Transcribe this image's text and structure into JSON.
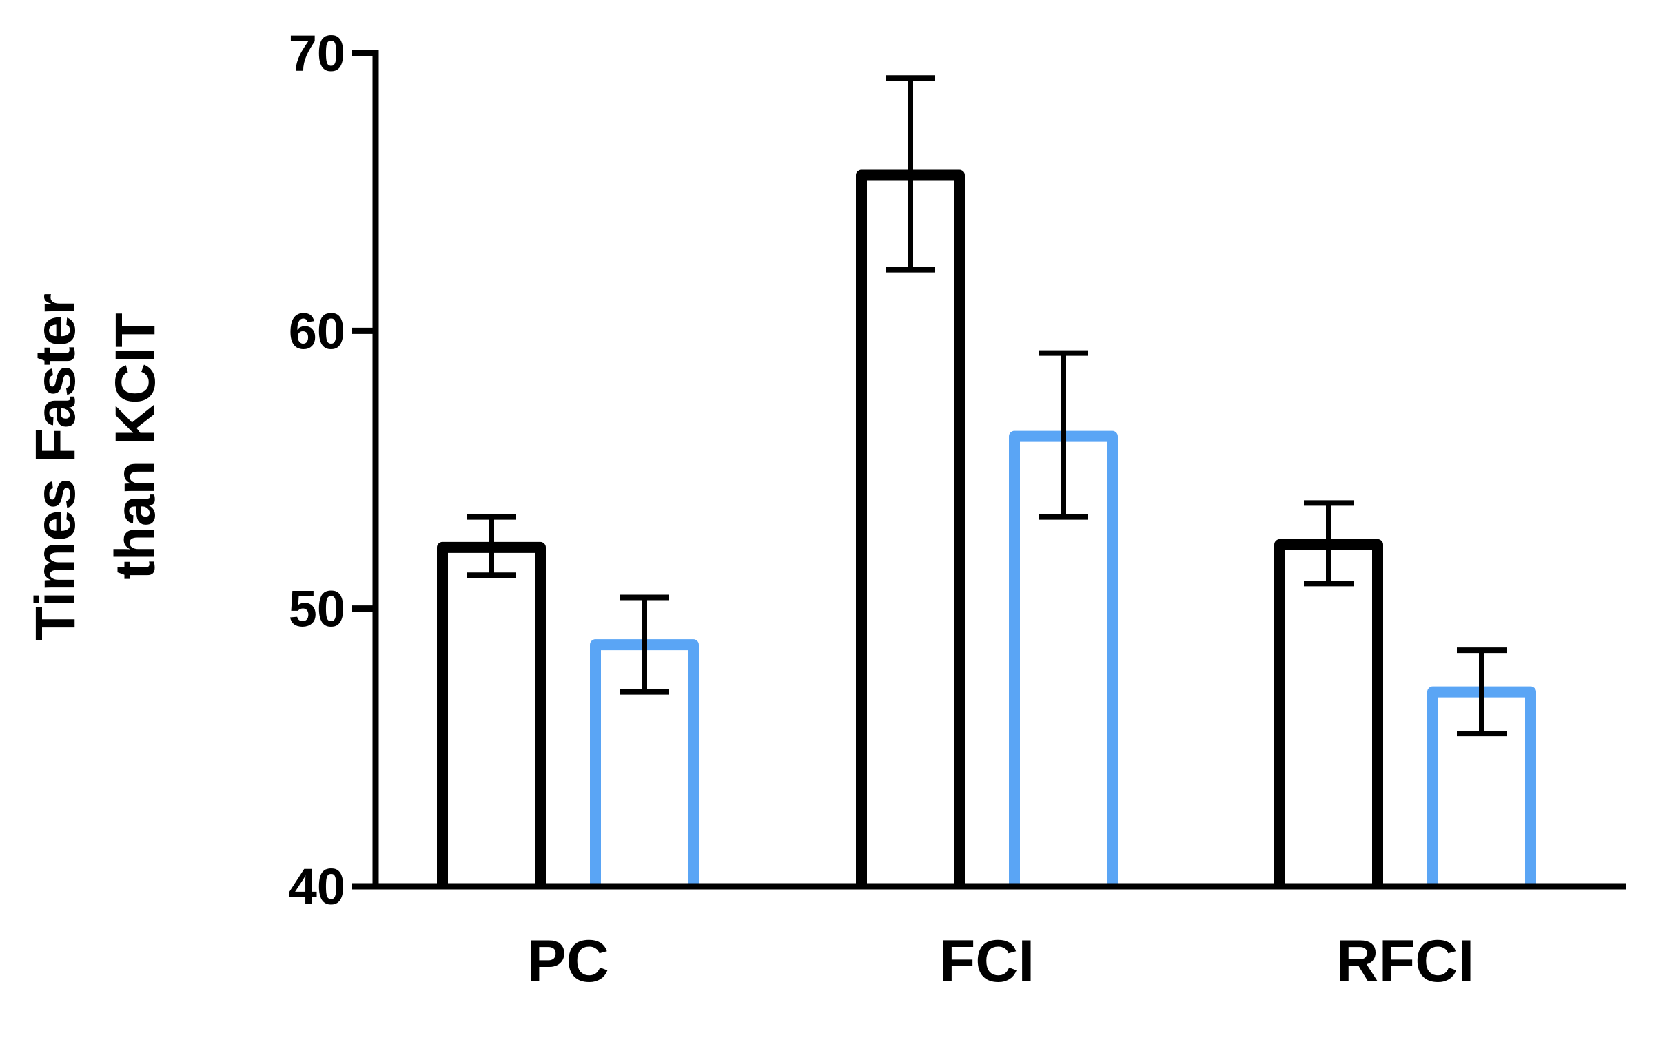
{
  "chart_data": {
    "type": "bar",
    "title": "",
    "xlabel": "",
    "ylabel_lines": [
      "Times Faster",
      "than KCIT"
    ],
    "categories": [
      "PC",
      "FCI",
      "RFCI"
    ],
    "ylim": [
      40,
      70
    ],
    "yticks": [
      40,
      50,
      60,
      70
    ],
    "y_tick_labels": [
      "40",
      "50",
      "60",
      "70"
    ],
    "grid": false,
    "legend": "none",
    "bar_style": "outline",
    "series": [
      {
        "color": "#000000",
        "values": [
          52.2,
          65.6,
          52.3
        ],
        "error_low": [
          51.2,
          62.2,
          50.9
        ],
        "error_high": [
          53.3,
          69.1,
          53.8
        ]
      },
      {
        "color": "#5aa5f5",
        "values": [
          48.7,
          56.2,
          47.0
        ],
        "error_low": [
          47.0,
          53.3,
          45.5
        ],
        "error_high": [
          50.4,
          59.2,
          48.5
        ]
      }
    ],
    "error_bar_color": "#000000",
    "axis_color": "#000000"
  }
}
